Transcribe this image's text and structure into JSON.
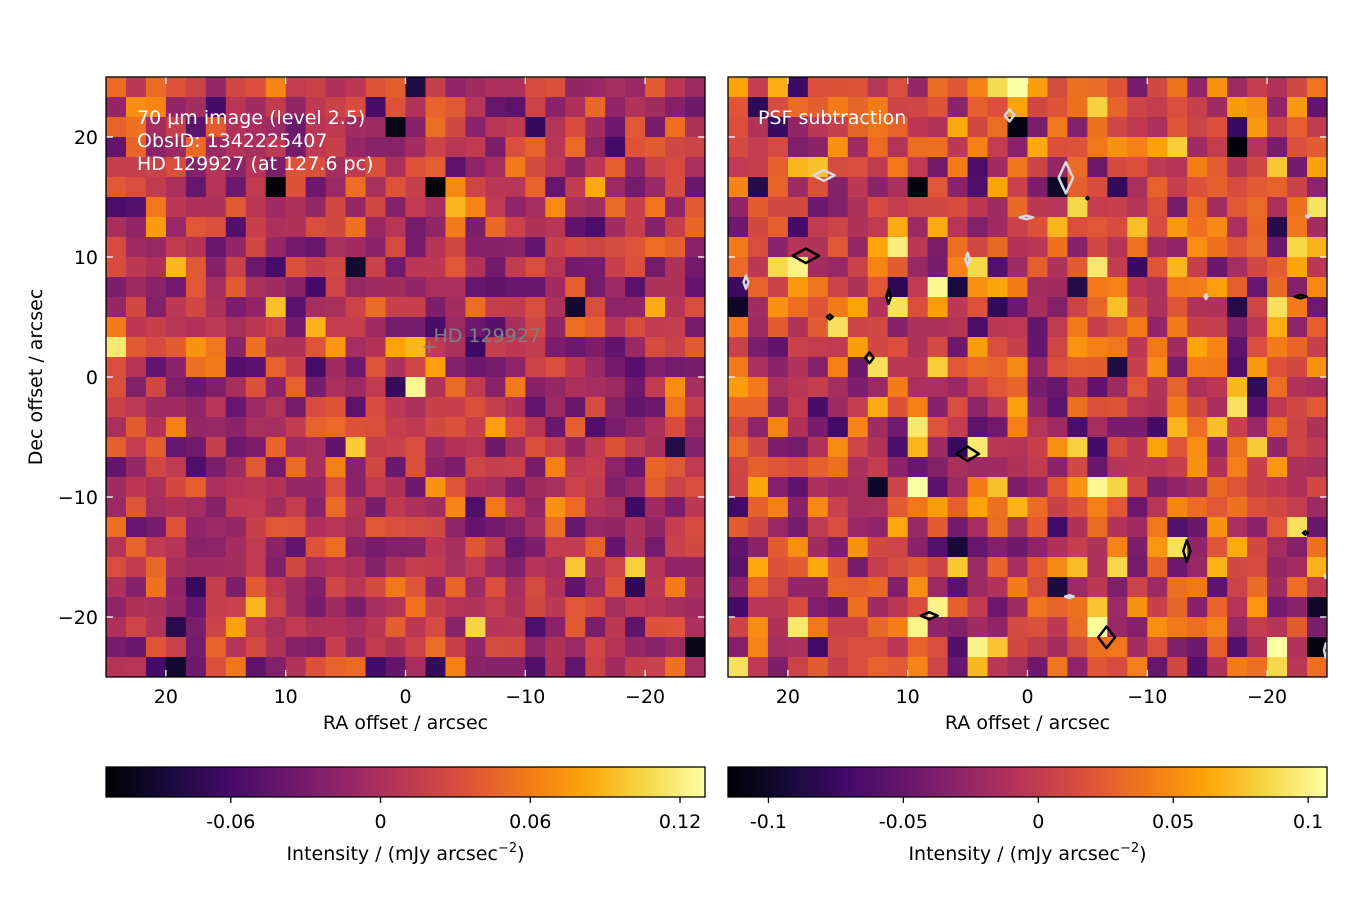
{
  "chart_data": [
    {
      "type": "heatmap",
      "panel": "left",
      "annotation_lines": [
        "70 μm image (level 2.5)",
        "ObsID: 1342225407",
        "HD 129927 (at 127.6 pc)"
      ],
      "marker_label": "HD 129927",
      "marker_position": {
        "ra": -2.0,
        "dec": 2.5
      },
      "xlabel": "RA offset / arcsec",
      "ylabel": "Dec offset / arcsec",
      "xlim": [
        25,
        -25
      ],
      "ylim": [
        -25,
        25
      ],
      "xticks": [
        20,
        10,
        0,
        -10,
        -20
      ],
      "xtick_labels": [
        "20",
        "10",
        "0",
        "−10",
        "−20"
      ],
      "yticks": [
        20,
        10,
        0,
        -10,
        -20
      ],
      "ytick_labels": [
        "20",
        "10",
        "0",
        "−10",
        "−20"
      ],
      "grid_size": 30,
      "pixel_scale_arcsec": 1.6667,
      "colormap": "inferno",
      "vmin": -0.11,
      "vmax": 0.13,
      "peak": {
        "ra": 0,
        "dec": 0,
        "value": 0.125
      },
      "bright_pixels": [
        {
          "ra": -1.5,
          "dec": 2.5,
          "value": 0.09
        },
        {
          "ra": 1.5,
          "dec": 2.5,
          "value": 0.08
        },
        {
          "ra": -1.5,
          "dec": -1.5,
          "value": 0.085
        },
        {
          "ra": 5,
          "dec": -6.5,
          "value": 0.1
        },
        {
          "ra": -6.5,
          "dec": -21,
          "value": 0.105
        },
        {
          "ra": -4.5,
          "dec": 15,
          "value": 0.09
        },
        {
          "ra": 18.5,
          "dec": 10,
          "value": 0.09
        },
        {
          "ra": 11.5,
          "dec": 6.5,
          "value": 0.095
        },
        {
          "ra": -21,
          "dec": 6.5,
          "value": 0.085
        },
        {
          "ra": 13,
          "dec": -19.5,
          "value": 0.09
        }
      ],
      "dark_pixels": [
        {
          "ra": 11.5,
          "dec": 16.5,
          "value": -0.11
        },
        {
          "ra": -3,
          "dec": 16.5,
          "value": -0.11
        },
        {
          "ra": 1.5,
          "dec": 21,
          "value": -0.1
        },
        {
          "ra": 5,
          "dec": 10,
          "value": -0.09
        },
        {
          "ra": -14.5,
          "dec": 6.5,
          "value": -0.09
        },
        {
          "ra": -24,
          "dec": -22.5,
          "value": -0.1
        },
        {
          "ra": 19.5,
          "dec": -24,
          "value": -0.09
        }
      ],
      "colorbar": {
        "label": "Intensity / (mJy arcsec",
        "label_exponent": "−2",
        "label_suffix": ")",
        "ticks": [
          -0.06,
          0,
          0.06,
          0.12
        ],
        "tick_labels": [
          "-0.06",
          "0",
          "0.06",
          "0.12"
        ]
      }
    },
    {
      "type": "heatmap",
      "panel": "right",
      "annotation_lines": [
        "PSF subtraction"
      ],
      "xlabel": "RA offset / arcsec",
      "xlim": [
        25,
        -25
      ],
      "ylim": [
        -25,
        25
      ],
      "xticks": [
        20,
        10,
        0,
        -10,
        -20
      ],
      "xtick_labels": [
        "20",
        "10",
        "0",
        "−10",
        "−20"
      ],
      "grid_size": 30,
      "colormap": "inferno",
      "vmin": -0.115,
      "vmax": 0.107,
      "bright_pixels": [
        {
          "ra": 18.5,
          "dec": 10,
          "value": 0.1
        },
        {
          "ra": 16.5,
          "dec": 5,
          "value": 0.09
        },
        {
          "ra": 11.5,
          "dec": 6.5,
          "value": 0.09
        },
        {
          "ra": 13,
          "dec": 1.5,
          "value": 0.09
        },
        {
          "ra": 5,
          "dec": -6.5,
          "value": 0.095
        },
        {
          "ra": 8,
          "dec": -19.5,
          "value": 0.1
        },
        {
          "ra": -6.5,
          "dec": -21,
          "value": 0.105
        },
        {
          "ra": -13,
          "dec": -14.5,
          "value": 0.09
        },
        {
          "ra": -4.5,
          "dec": 15,
          "value": 0.085
        },
        {
          "ra": -21,
          "dec": 6.5,
          "value": 0.09
        },
        {
          "ra": -22.5,
          "dec": -12.5,
          "value": 0.09
        },
        {
          "ra": 24,
          "dec": -24,
          "value": 0.09
        }
      ],
      "dark_pixels": [
        {
          "ra": 1.5,
          "dec": 21,
          "value": -0.11
        },
        {
          "ra": 9.5,
          "dec": 16.5,
          "value": -0.11
        },
        {
          "ra": -3,
          "dec": 16.5,
          "value": -0.1
        },
        {
          "ra": 24,
          "dec": 6.5,
          "value": -0.1
        },
        {
          "ra": 13,
          "dec": -9.5,
          "value": -0.1
        },
        {
          "ra": -24,
          "dec": -22.5,
          "value": -0.11
        },
        {
          "ra": -3,
          "dec": -17.5,
          "value": -0.09
        }
      ],
      "contours": {
        "positive_color": "#000000",
        "negative_color": "#d8d8e0",
        "positive": [
          {
            "ra": 18.5,
            "dec": 10.1,
            "rx": 1.1,
            "ry": 0.6
          },
          {
            "ra": 16.5,
            "dec": 5.0,
            "rx": 0.25,
            "ry": 0.2
          },
          {
            "ra": 11.6,
            "dec": 6.7,
            "rx": 0.2,
            "ry": 0.6
          },
          {
            "ra": 13.2,
            "dec": 1.6,
            "rx": 0.35,
            "ry": 0.45
          },
          {
            "ra": 5.0,
            "dec": -6.4,
            "rx": 0.95,
            "ry": 0.6
          },
          {
            "ra": 8.2,
            "dec": -19.9,
            "rx": 0.7,
            "ry": 0.3
          },
          {
            "ra": -6.6,
            "dec": -21.7,
            "rx": 0.7,
            "ry": 0.9
          },
          {
            "ra": -13.3,
            "dec": -14.5,
            "rx": 0.3,
            "ry": 0.9
          },
          {
            "ra": -22.8,
            "dec": 6.7,
            "rx": 0.5,
            "ry": 0.15
          },
          {
            "ra": -23.2,
            "dec": -13.0,
            "rx": 0.2,
            "ry": 0.15
          },
          {
            "ra": -5.0,
            "dec": 14.9,
            "rx": 0.1,
            "ry": 0.1
          }
        ],
        "negative": [
          {
            "ra": 17.0,
            "dec": 16.8,
            "rx": 0.9,
            "ry": 0.45
          },
          {
            "ra": 1.5,
            "dec": 21.8,
            "rx": 0.4,
            "ry": 0.5
          },
          {
            "ra": -3.2,
            "dec": 16.6,
            "rx": 0.6,
            "ry": 1.3
          },
          {
            "ra": 0.1,
            "dec": 13.3,
            "rx": 0.55,
            "ry": 0.15
          },
          {
            "ra": 5.0,
            "dec": 9.8,
            "rx": 0.2,
            "ry": 0.55
          },
          {
            "ra": 23.5,
            "dec": 7.9,
            "rx": 0.2,
            "ry": 0.55
          },
          {
            "ra": -14.9,
            "dec": 6.7,
            "rx": 0.12,
            "ry": 0.2
          },
          {
            "ra": -23.4,
            "dec": 13.4,
            "rx": 0.15,
            "ry": 0.12
          },
          {
            "ra": -3.5,
            "dec": -18.3,
            "rx": 0.35,
            "ry": 0.12
          },
          {
            "ra": -24.9,
            "dec": -22.8,
            "rx": 0.15,
            "ry": 0.6
          },
          {
            "ra": -24.9,
            "dec": -16.6,
            "rx": 0.1,
            "ry": 0.15
          }
        ]
      },
      "colorbar": {
        "label": "Intensity / (mJy arcsec",
        "label_exponent": "−2",
        "label_suffix": ")",
        "ticks": [
          -0.1,
          -0.05,
          0,
          0.05,
          0.1
        ],
        "tick_labels": [
          "-0.1",
          "-0.05",
          "0",
          "0.05",
          "0.1"
        ]
      }
    }
  ]
}
